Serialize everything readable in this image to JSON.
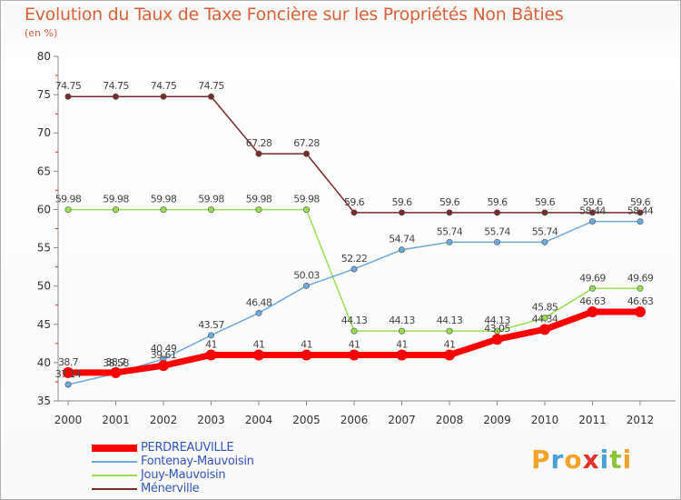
{
  "chart_data": {
    "type": "line",
    "title": "Evolution du Taux de Taxe Foncière sur les Propriétés Non Bâties",
    "subtitle": "(en %)",
    "xlabel": "",
    "ylabel": "",
    "ylim": [
      35,
      80
    ],
    "yticks": [
      35,
      40,
      45,
      50,
      55,
      60,
      65,
      70,
      75,
      80
    ],
    "x": [
      "2000",
      "2001",
      "2002",
      "2003",
      "2004",
      "2005",
      "2006",
      "2007",
      "2008",
      "2009",
      "2010",
      "2011",
      "2012"
    ],
    "series": [
      {
        "name": "PERDREAUVILLE",
        "color": "#ff0000",
        "values": [
          38.7,
          38.7,
          39.61,
          41,
          41,
          41,
          41,
          41,
          41,
          43.05,
          44.34,
          46.63,
          46.63
        ],
        "labels": [
          "38.7",
          "38.7",
          "39.61",
          "41",
          "41",
          "41",
          "41",
          "41",
          "41",
          "43.05",
          "44.34",
          "46.63",
          "46.63"
        ]
      },
      {
        "name": "Fontenay-Mauvoisin",
        "color": "#6fa8dc",
        "values": [
          37.14,
          38.58,
          40.49,
          43.57,
          46.48,
          50.03,
          52.22,
          54.74,
          55.74,
          55.74,
          55.74,
          58.44,
          58.44
        ],
        "labels": [
          "37.14",
          "38.58",
          "40.49",
          "43.57",
          "46.48",
          "50.03",
          "52.22",
          "54.74",
          "55.74",
          "55.74",
          "55.74",
          "58.44",
          "58.44"
        ]
      },
      {
        "name": "Jouy-Mauvoisin",
        "color": "#99dd55",
        "values": [
          59.98,
          59.98,
          59.98,
          59.98,
          59.98,
          59.98,
          44.13,
          44.13,
          44.13,
          44.13,
          45.85,
          49.69,
          49.69
        ],
        "labels": [
          "59.98",
          "59.98",
          "59.98",
          "59.98",
          "59.98",
          "59.98",
          "44.13",
          "44.13",
          "44.13",
          "44.13",
          "45.85",
          "49.69",
          "49.69"
        ]
      },
      {
        "name": "Ménerville",
        "color": "#7a2a2a",
        "values": [
          74.75,
          74.75,
          74.75,
          74.75,
          67.28,
          67.28,
          59.6,
          59.6,
          59.6,
          59.6,
          59.6,
          59.6,
          59.6
        ],
        "labels": [
          "74.75",
          "74.75",
          "74.75",
          "74.75",
          "67.28",
          "67.28",
          "59.6",
          "59.6",
          "59.6",
          "59.6",
          "59.6",
          "59.6",
          "59.6"
        ]
      }
    ],
    "legend_position": "bottom-left",
    "grid": false
  },
  "logo": {
    "text": "Proxiti",
    "letters": [
      "P",
      "r",
      "o",
      "x",
      "i",
      "t",
      "i"
    ],
    "colors": [
      "#f2a32c",
      "#4aa0d8",
      "#f2a32c",
      "#e0322a",
      "#4aa0d8",
      "#8cc43c",
      "#f2a32c"
    ]
  }
}
